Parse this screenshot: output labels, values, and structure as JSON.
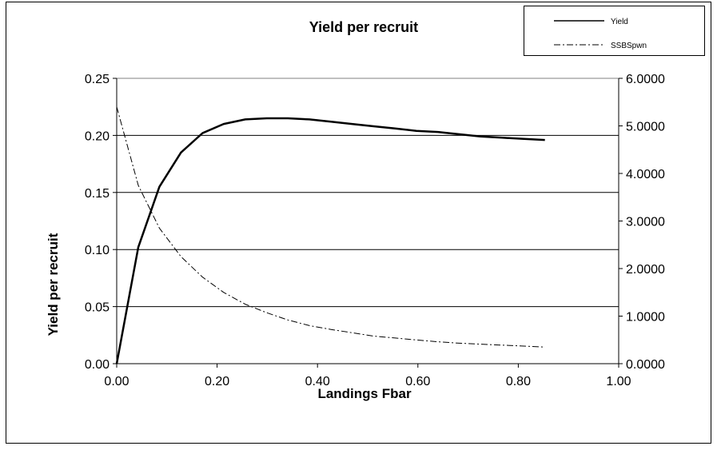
{
  "chart_data": {
    "type": "line",
    "title": "Yield per recruit",
    "xlabel": "Landings Fbar",
    "ylabel": "Yield per recruit",
    "y2label": "",
    "xlim": [
      0,
      1
    ],
    "ylim": [
      0,
      0.25
    ],
    "y2lim": [
      0,
      6
    ],
    "x_ticks": [
      "0.00",
      "0.20",
      "0.40",
      "0.60",
      "0.80",
      "1.00"
    ],
    "y_ticks": [
      "0.00",
      "0.05",
      "0.10",
      "0.15",
      "0.20",
      "0.25"
    ],
    "y2_ticks": [
      "0.0000",
      "1.0000",
      "2.0000",
      "3.0000",
      "4.0000",
      "5.0000",
      "6.0000"
    ],
    "grid": true,
    "legend_position": "top-right",
    "series": [
      {
        "name": "Yield",
        "axis": "left",
        "style": "solid",
        "color": "#000000",
        "x": [
          0,
          0.043,
          0.085,
          0.128,
          0.171,
          0.213,
          0.256,
          0.299,
          0.341,
          0.384,
          0.427,
          0.469,
          0.512,
          0.555,
          0.597,
          0.64,
          0.683,
          0.725,
          0.768,
          0.811,
          0.853
        ],
        "y": [
          0,
          0.102,
          0.155,
          0.185,
          0.202,
          0.21,
          0.214,
          0.215,
          0.215,
          0.214,
          0.212,
          0.21,
          0.208,
          0.206,
          0.204,
          0.203,
          0.201,
          0.199,
          0.198,
          0.197,
          0.196
        ]
      },
      {
        "name": "SSBSpwn",
        "axis": "right",
        "style": "dashdot",
        "color": "#000000",
        "x": [
          0,
          0.043,
          0.085,
          0.128,
          0.171,
          0.213,
          0.256,
          0.299,
          0.341,
          0.384,
          0.427,
          0.469,
          0.512,
          0.555,
          0.597,
          0.64,
          0.683,
          0.725,
          0.768,
          0.811,
          0.853
        ],
        "y": [
          5.4,
          3.75,
          2.85,
          2.25,
          1.82,
          1.5,
          1.25,
          1.07,
          0.92,
          0.8,
          0.72,
          0.65,
          0.58,
          0.54,
          0.5,
          0.46,
          0.43,
          0.41,
          0.39,
          0.37,
          0.35
        ]
      }
    ]
  }
}
